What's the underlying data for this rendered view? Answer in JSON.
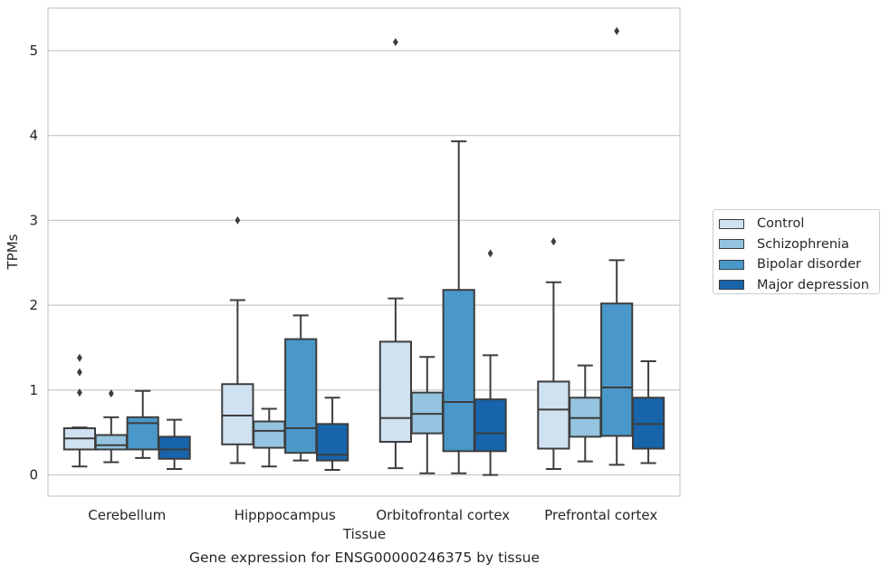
{
  "chart_data": {
    "type": "box",
    "title": "",
    "caption": "Gene expression for ENSG00000246375 by tissue",
    "xlabel": "Tissue",
    "ylabel": "TPMs",
    "ylim": [
      -0.25,
      5.5
    ],
    "yticks": [
      0,
      1,
      2,
      3,
      4,
      5
    ],
    "grid": "horizontal",
    "legend_position": "right",
    "categories": [
      "Cerebellum",
      "Hipppocampus",
      "Orbitofrontal cortex",
      "Prefrontal cortex"
    ],
    "series": [
      {
        "name": "Control",
        "color": "#d0e1f2",
        "boxes": [
          {
            "min": 0.1,
            "q1": 0.3,
            "median": 0.43,
            "q3": 0.55,
            "max": 0.56,
            "outliers": [
              0.97,
              1.21,
              1.38
            ]
          },
          {
            "min": 0.14,
            "q1": 0.36,
            "median": 0.7,
            "q3": 1.07,
            "max": 2.06,
            "outliers": [
              3.0
            ]
          },
          {
            "min": 0.08,
            "q1": 0.39,
            "median": 0.67,
            "q3": 1.57,
            "max": 2.08,
            "outliers": [
              5.1
            ]
          },
          {
            "min": 0.07,
            "q1": 0.31,
            "median": 0.77,
            "q3": 1.1,
            "max": 2.27,
            "outliers": [
              2.75
            ]
          }
        ]
      },
      {
        "name": "Schizophrenia",
        "color": "#94c4df",
        "boxes": [
          {
            "min": 0.15,
            "q1": 0.3,
            "median": 0.35,
            "q3": 0.47,
            "max": 0.68,
            "outliers": [
              0.96
            ]
          },
          {
            "min": 0.1,
            "q1": 0.32,
            "median": 0.52,
            "q3": 0.63,
            "max": 0.78,
            "outliers": []
          },
          {
            "min": 0.02,
            "q1": 0.49,
            "median": 0.72,
            "q3": 0.97,
            "max": 1.39,
            "outliers": []
          },
          {
            "min": 0.16,
            "q1": 0.45,
            "median": 0.67,
            "q3": 0.91,
            "max": 1.29,
            "outliers": []
          }
        ]
      },
      {
        "name": "Bipolar disorder",
        "color": "#4a98c9",
        "boxes": [
          {
            "min": 0.2,
            "q1": 0.3,
            "median": 0.61,
            "q3": 0.68,
            "max": 0.99,
            "outliers": []
          },
          {
            "min": 0.17,
            "q1": 0.26,
            "median": 0.55,
            "q3": 1.6,
            "max": 1.88,
            "outliers": []
          },
          {
            "min": 0.02,
            "q1": 0.28,
            "median": 0.86,
            "q3": 2.18,
            "max": 3.93,
            "outliers": []
          },
          {
            "min": 0.12,
            "q1": 0.46,
            "median": 1.03,
            "q3": 2.02,
            "max": 2.53,
            "outliers": [
              5.23
            ]
          }
        ]
      },
      {
        "name": "Major depression",
        "color": "#1764ab",
        "boxes": [
          {
            "min": 0.07,
            "q1": 0.19,
            "median": 0.3,
            "q3": 0.45,
            "max": 0.65,
            "outliers": []
          },
          {
            "min": 0.06,
            "q1": 0.17,
            "median": 0.24,
            "q3": 0.6,
            "max": 0.91,
            "outliers": []
          },
          {
            "min": 0.0,
            "q1": 0.28,
            "median": 0.49,
            "q3": 0.89,
            "max": 1.41,
            "outliers": [
              2.61
            ]
          },
          {
            "min": 0.14,
            "q1": 0.31,
            "median": 0.6,
            "q3": 0.91,
            "max": 1.34,
            "outliers": []
          }
        ]
      }
    ]
  }
}
